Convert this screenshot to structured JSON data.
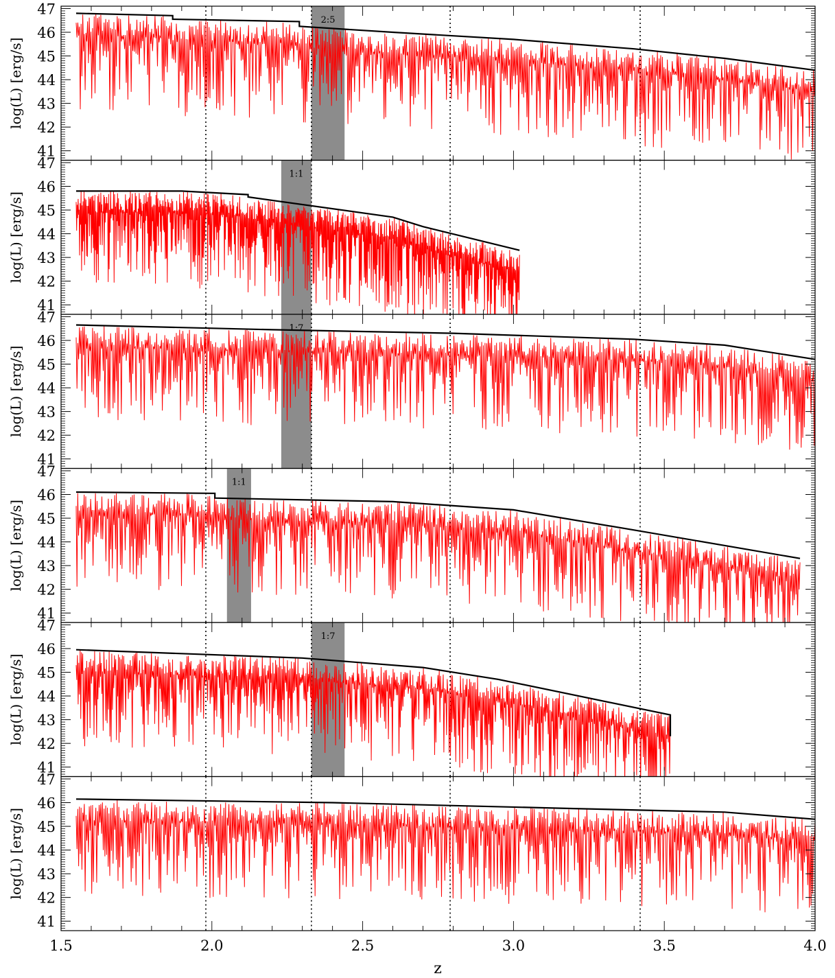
{
  "figure": {
    "xlabel": "z",
    "ylabel": "log(L) [erg/s]",
    "xticks": [
      "1.5",
      "2.0",
      "2.5",
      "3.0",
      "3.5",
      "4.0"
    ],
    "yticks": [
      "41",
      "42",
      "43",
      "44",
      "45",
      "46",
      "47"
    ],
    "xlim": [
      1.5,
      4.0
    ],
    "ylim": [
      40.6,
      47.1
    ],
    "dotted_z": [
      1.98,
      2.33,
      2.79,
      3.42
    ],
    "colors": {
      "envelope": "#000000",
      "lightcurve": "#ff0000",
      "band": "#8c8c8c",
      "frame": "#000000"
    }
  },
  "chart_data": [
    {
      "type": "line",
      "panel": 1,
      "ylabel": "log(L) [erg/s]",
      "xlim": [
        1.5,
        4.0
      ],
      "ylim": [
        40.6,
        47.1
      ],
      "merger_band": {
        "label": "2:5",
        "z_range": [
          2.33,
          2.44
        ]
      },
      "envelope": {
        "x": [
          1.55,
          1.87,
          1.87,
          2.29,
          2.29,
          2.6,
          3.0,
          3.4,
          3.7,
          4.0
        ],
        "y": [
          46.8,
          46.7,
          46.55,
          46.45,
          46.25,
          46.0,
          45.7,
          45.3,
          44.9,
          44.4
        ]
      },
      "lightcurve_range": [
        1.55,
        4.0
      ]
    },
    {
      "type": "line",
      "panel": 2,
      "ylabel": "log(L) [erg/s]",
      "xlim": [
        1.5,
        4.0
      ],
      "ylim": [
        40.6,
        47.1
      ],
      "merger_band": {
        "label": "1:1",
        "z_range": [
          2.23,
          2.33
        ]
      },
      "envelope": {
        "x": [
          1.55,
          1.9,
          2.12,
          2.12,
          2.6,
          2.7,
          3.02
        ],
        "y": [
          45.8,
          45.8,
          45.65,
          45.55,
          44.7,
          44.3,
          43.3
        ]
      },
      "lightcurve_range": [
        1.55,
        3.02
      ]
    },
    {
      "type": "line",
      "panel": 3,
      "ylabel": "log(L) [erg/s]",
      "xlim": [
        1.5,
        4.0
      ],
      "ylim": [
        40.6,
        47.1
      ],
      "merger_band": {
        "label": "1:7",
        "z_range": [
          2.23,
          2.33
        ]
      },
      "envelope": {
        "x": [
          1.55,
          2.2,
          2.8,
          3.4,
          3.7,
          4.0
        ],
        "y": [
          46.65,
          46.45,
          46.3,
          46.05,
          45.8,
          45.2
        ]
      },
      "lightcurve_range": [
        1.55,
        4.0
      ]
    },
    {
      "type": "line",
      "panel": 4,
      "ylabel": "log(L) [erg/s]",
      "xlim": [
        1.5,
        4.0
      ],
      "ylim": [
        40.6,
        47.1
      ],
      "merger_band": {
        "label": "1:1",
        "z_range": [
          2.05,
          2.13
        ]
      },
      "envelope": {
        "x": [
          1.55,
          2.0,
          2.01,
          2.01,
          2.6,
          3.0,
          3.4,
          3.95
        ],
        "y": [
          46.1,
          46.05,
          46.05,
          45.85,
          45.7,
          45.35,
          44.5,
          43.3
        ]
      },
      "lightcurve_range": [
        1.55,
        3.95
      ]
    },
    {
      "type": "line",
      "panel": 5,
      "ylabel": "log(L) [erg/s]",
      "xlim": [
        1.5,
        4.0
      ],
      "ylim": [
        40.6,
        47.1
      ],
      "merger_band": {
        "label": "1:7",
        "z_range": [
          2.33,
          2.44
        ]
      },
      "envelope": {
        "x": [
          1.55,
          2.3,
          2.7,
          2.95,
          3.52,
          3.52
        ],
        "y": [
          45.95,
          45.6,
          45.2,
          44.7,
          43.2,
          42.3
        ]
      },
      "lightcurve_range": [
        1.55,
        3.52
      ]
    },
    {
      "type": "line",
      "panel": 6,
      "ylabel": "log(L) [erg/s]",
      "xlim": [
        1.5,
        4.0
      ],
      "ylim": [
        40.6,
        47.1
      ],
      "merger_band": null,
      "envelope": {
        "x": [
          1.55,
          2.4,
          3.2,
          3.7,
          4.0
        ],
        "y": [
          46.15,
          46.0,
          45.75,
          45.6,
          45.3
        ]
      },
      "lightcurve_range": [
        1.55,
        4.0
      ]
    }
  ]
}
